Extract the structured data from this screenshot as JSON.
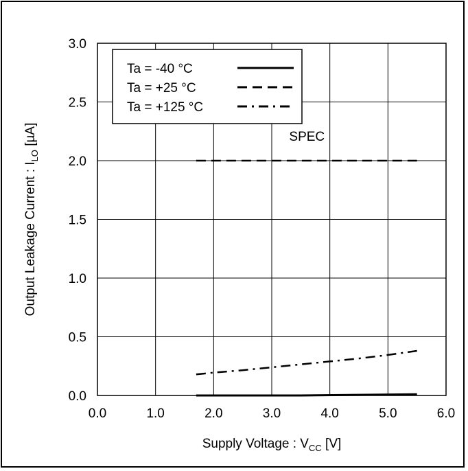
{
  "chart_data": {
    "type": "line",
    "xlabel": "Supply Voltage : V",
    "xlabel_sub": "CC",
    "xlabel_unit": " [V]",
    "ylabel": "Output Leakage Current : I",
    "ylabel_sub": "LO",
    "ylabel_unit": " [µA]",
    "xlim": [
      0.0,
      6.0
    ],
    "ylim": [
      0.0,
      3.0
    ],
    "x_ticks": [
      "0.0",
      "1.0",
      "2.0",
      "3.0",
      "4.0",
      "5.0",
      "6.0"
    ],
    "y_ticks": [
      "0.0",
      "0.5",
      "1.0",
      "1.5",
      "2.0",
      "2.5",
      "3.0"
    ],
    "grid": true,
    "legend_position": "top-left",
    "series": [
      {
        "name": "Ta = -40 °C",
        "style": "solid",
        "x": [
          1.7,
          2.5,
          3.5,
          4.5,
          5.5
        ],
        "y": [
          0.0,
          0.0,
          0.0,
          0.005,
          0.01
        ]
      },
      {
        "name": "Ta = +25 °C",
        "style": "dashed",
        "x": [
          1.7,
          5.5
        ],
        "y": [
          2.0,
          2.0
        ]
      },
      {
        "name": "Ta = +125 °C",
        "style": "dashdot",
        "x": [
          1.7,
          2.0,
          2.5,
          3.0,
          3.5,
          4.0,
          4.5,
          5.0,
          5.5
        ],
        "y": [
          0.18,
          0.195,
          0.215,
          0.24,
          0.265,
          0.29,
          0.315,
          0.345,
          0.38
        ]
      }
    ],
    "annotations": [
      {
        "text": "SPEC",
        "x": 3.3,
        "y": 2.1
      }
    ]
  }
}
